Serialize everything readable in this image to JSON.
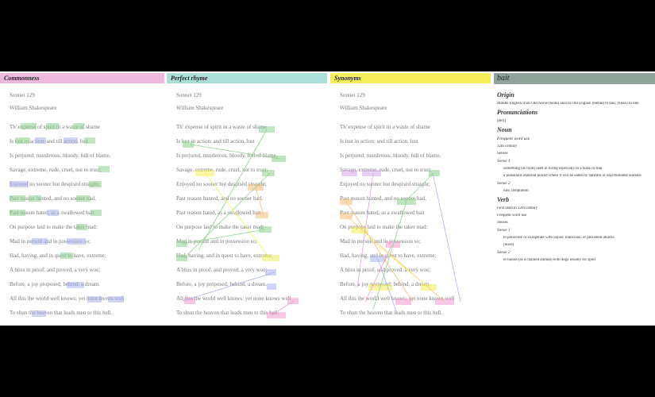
{
  "panels": [
    {
      "label": "Commonness"
    },
    {
      "label": "Perfect rhyme"
    },
    {
      "label": "Synonyms"
    }
  ],
  "poem": {
    "title": "Sonnet 129",
    "author": "William Shakespeare",
    "lines": [
      "Th' expense of spirit in a waste of shame",
      "Is lust in action; and till action, lust",
      "Is perjured, murderous, bloody, full of blame,",
      "Savage, extreme, rude, cruel, not to trust;",
      "Enjoyed no sooner but despisèd straight;",
      "Past reason hunted, and no sooner had,",
      "Past reason hated, as a swallowed bait",
      "On purpose laid to make the taker mad:",
      "Mad in pursuit and in possession so;",
      "Had, having, and in quest to have, extreme;",
      "A bliss in proof, and proved, a very woe;",
      "Before, a joy proposed; behind, a dream.",
      "All this the world well knows; yet none knows well",
      "To shun the heaven that leads men to this hell."
    ]
  },
  "dictionary": {
    "word": "bait",
    "origin_heading": "Origin",
    "origin": "Middle English from Old Norse (beita) akin to Old English (bǣtan) to bait, (bītan) to bite",
    "pronunciations_heading": "Pronunciations",
    "pronunciation": "[beɪt]",
    "noun": {
      "heading": "Noun",
      "frequency": "Frequent word use",
      "first_use": "12th century",
      "senses_heading": "Senses",
      "sense1_heading": "Sense 1",
      "sense1": "something (as food) used in luring especially to a hook or trap",
      "sense1b": "a poisonous material placed where it will be eaten by harmful or objectionable animals",
      "sense2_heading": "Sense 2",
      "sense2": "lure, temptation"
    },
    "verb": {
      "heading": "Verb",
      "first_use": "First used in 12th century",
      "frequency": "Frequent word use",
      "senses_heading": "Senses",
      "sense1_heading": "Sense 1",
      "sense1": "to persecute or exasperate with unjust, malicious, or persistent attacks",
      "sense1b": "[tease]",
      "sense2_heading": "Sense 2",
      "sense2": "to harass (as a chained animal) with dogs usually for sport"
    }
  }
}
